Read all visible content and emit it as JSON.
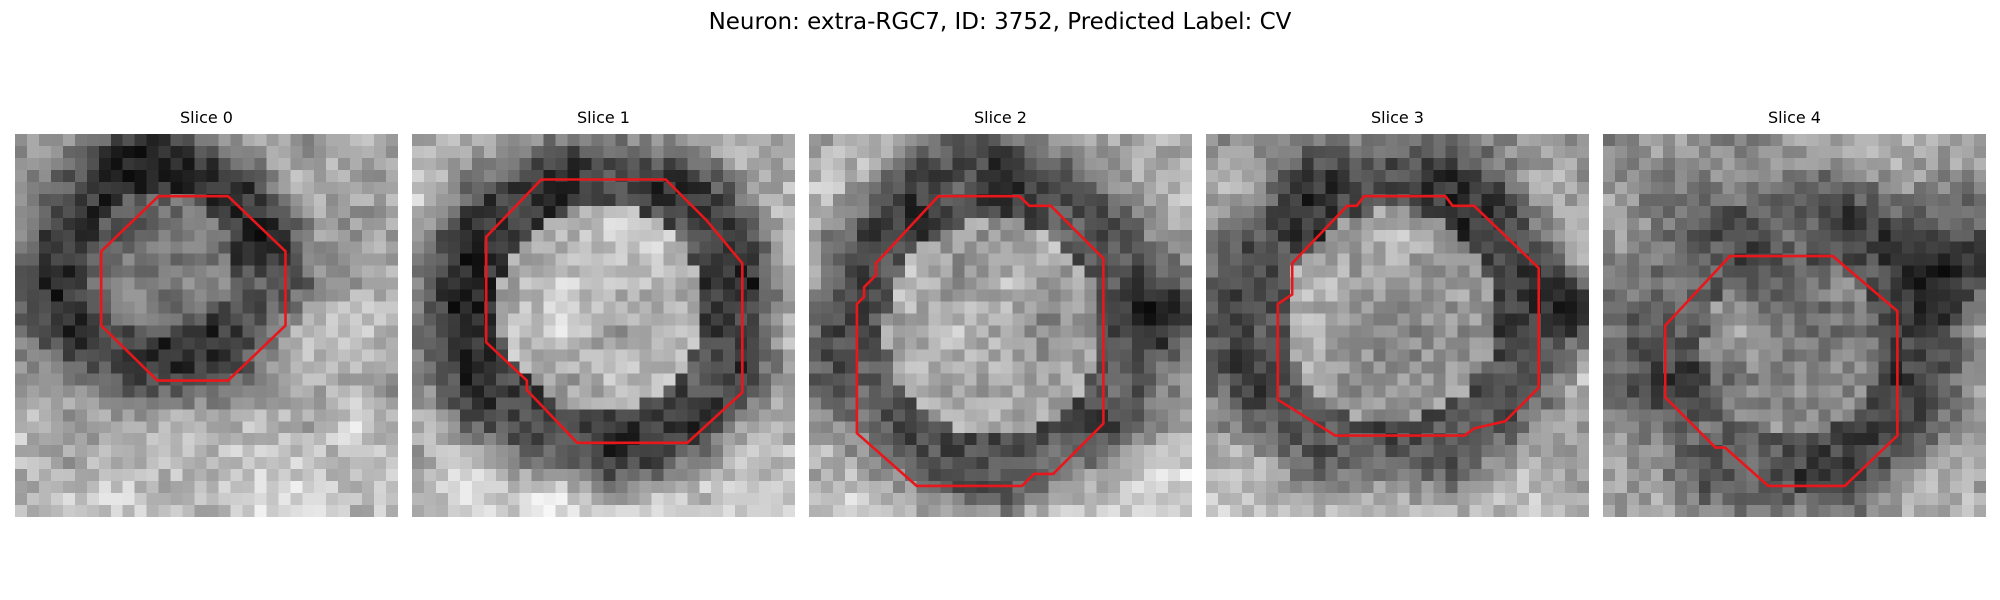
{
  "figure": {
    "title": "Neuron: extra-RGC7, ID: 3752, Predicted Label: CV"
  },
  "colors": {
    "contour": "#e8171b",
    "background": "#ffffff"
  },
  "panels": [
    {
      "title": "Slice 0"
    },
    {
      "title": "Slice 1"
    },
    {
      "title": "Slice 2"
    },
    {
      "title": "Slice 3"
    },
    {
      "title": "Slice 4"
    }
  ]
}
